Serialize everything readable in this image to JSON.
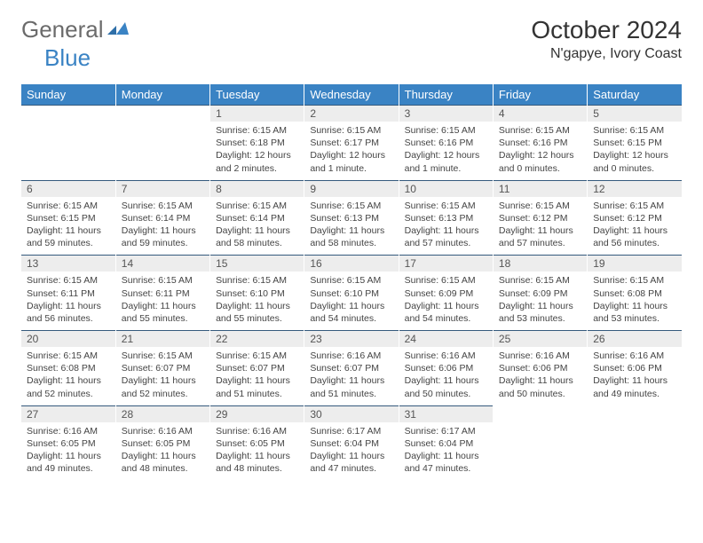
{
  "brand": {
    "part1": "General",
    "part2": "Blue"
  },
  "title": "October 2024",
  "location": "N'gapye, Ivory Coast",
  "colors": {
    "header_bg": "#3a83c4",
    "daynum_bg": "#ededed",
    "border": "#355a7d"
  },
  "weekdays": [
    "Sunday",
    "Monday",
    "Tuesday",
    "Wednesday",
    "Thursday",
    "Friday",
    "Saturday"
  ],
  "weeks": [
    [
      null,
      null,
      {
        "n": "1",
        "sr": "6:15 AM",
        "ss": "6:18 PM",
        "dl": "12 hours and 2 minutes."
      },
      {
        "n": "2",
        "sr": "6:15 AM",
        "ss": "6:17 PM",
        "dl": "12 hours and 1 minute."
      },
      {
        "n": "3",
        "sr": "6:15 AM",
        "ss": "6:16 PM",
        "dl": "12 hours and 1 minute."
      },
      {
        "n": "4",
        "sr": "6:15 AM",
        "ss": "6:16 PM",
        "dl": "12 hours and 0 minutes."
      },
      {
        "n": "5",
        "sr": "6:15 AM",
        "ss": "6:15 PM",
        "dl": "12 hours and 0 minutes."
      }
    ],
    [
      {
        "n": "6",
        "sr": "6:15 AM",
        "ss": "6:15 PM",
        "dl": "11 hours and 59 minutes."
      },
      {
        "n": "7",
        "sr": "6:15 AM",
        "ss": "6:14 PM",
        "dl": "11 hours and 59 minutes."
      },
      {
        "n": "8",
        "sr": "6:15 AM",
        "ss": "6:14 PM",
        "dl": "11 hours and 58 minutes."
      },
      {
        "n": "9",
        "sr": "6:15 AM",
        "ss": "6:13 PM",
        "dl": "11 hours and 58 minutes."
      },
      {
        "n": "10",
        "sr": "6:15 AM",
        "ss": "6:13 PM",
        "dl": "11 hours and 57 minutes."
      },
      {
        "n": "11",
        "sr": "6:15 AM",
        "ss": "6:12 PM",
        "dl": "11 hours and 57 minutes."
      },
      {
        "n": "12",
        "sr": "6:15 AM",
        "ss": "6:12 PM",
        "dl": "11 hours and 56 minutes."
      }
    ],
    [
      {
        "n": "13",
        "sr": "6:15 AM",
        "ss": "6:11 PM",
        "dl": "11 hours and 56 minutes."
      },
      {
        "n": "14",
        "sr": "6:15 AM",
        "ss": "6:11 PM",
        "dl": "11 hours and 55 minutes."
      },
      {
        "n": "15",
        "sr": "6:15 AM",
        "ss": "6:10 PM",
        "dl": "11 hours and 55 minutes."
      },
      {
        "n": "16",
        "sr": "6:15 AM",
        "ss": "6:10 PM",
        "dl": "11 hours and 54 minutes."
      },
      {
        "n": "17",
        "sr": "6:15 AM",
        "ss": "6:09 PM",
        "dl": "11 hours and 54 minutes."
      },
      {
        "n": "18",
        "sr": "6:15 AM",
        "ss": "6:09 PM",
        "dl": "11 hours and 53 minutes."
      },
      {
        "n": "19",
        "sr": "6:15 AM",
        "ss": "6:08 PM",
        "dl": "11 hours and 53 minutes."
      }
    ],
    [
      {
        "n": "20",
        "sr": "6:15 AM",
        "ss": "6:08 PM",
        "dl": "11 hours and 52 minutes."
      },
      {
        "n": "21",
        "sr": "6:15 AM",
        "ss": "6:07 PM",
        "dl": "11 hours and 52 minutes."
      },
      {
        "n": "22",
        "sr": "6:15 AM",
        "ss": "6:07 PM",
        "dl": "11 hours and 51 minutes."
      },
      {
        "n": "23",
        "sr": "6:16 AM",
        "ss": "6:07 PM",
        "dl": "11 hours and 51 minutes."
      },
      {
        "n": "24",
        "sr": "6:16 AM",
        "ss": "6:06 PM",
        "dl": "11 hours and 50 minutes."
      },
      {
        "n": "25",
        "sr": "6:16 AM",
        "ss": "6:06 PM",
        "dl": "11 hours and 50 minutes."
      },
      {
        "n": "26",
        "sr": "6:16 AM",
        "ss": "6:06 PM",
        "dl": "11 hours and 49 minutes."
      }
    ],
    [
      {
        "n": "27",
        "sr": "6:16 AM",
        "ss": "6:05 PM",
        "dl": "11 hours and 49 minutes."
      },
      {
        "n": "28",
        "sr": "6:16 AM",
        "ss": "6:05 PM",
        "dl": "11 hours and 48 minutes."
      },
      {
        "n": "29",
        "sr": "6:16 AM",
        "ss": "6:05 PM",
        "dl": "11 hours and 48 minutes."
      },
      {
        "n": "30",
        "sr": "6:17 AM",
        "ss": "6:04 PM",
        "dl": "11 hours and 47 minutes."
      },
      {
        "n": "31",
        "sr": "6:17 AM",
        "ss": "6:04 PM",
        "dl": "11 hours and 47 minutes."
      },
      null,
      null
    ]
  ],
  "labels": {
    "sunrise": "Sunrise:",
    "sunset": "Sunset:",
    "daylight": "Daylight:"
  }
}
